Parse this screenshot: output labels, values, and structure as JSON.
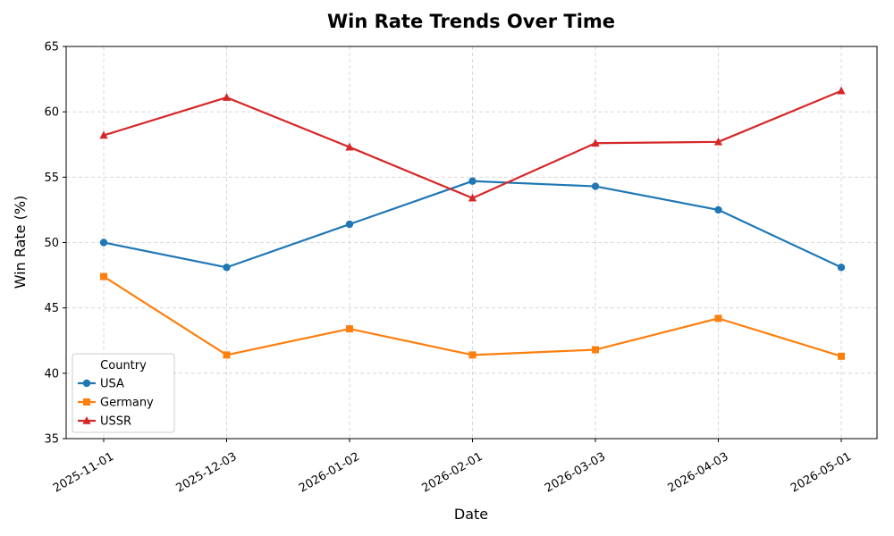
{
  "chart_data": {
    "type": "line",
    "title": "Win Rate Trends Over Time",
    "xlabel": "Date",
    "ylabel": "Win Rate (%)",
    "x": [
      "2025-11-01",
      "2025-12-03",
      "2026-01-02",
      "2026-02-01",
      "2026-03-03",
      "2026-04-03",
      "2026-05-01"
    ],
    "ylim": [
      35,
      65
    ],
    "yticks": [
      35,
      40,
      45,
      50,
      55,
      60,
      65
    ],
    "grid": true,
    "legend": {
      "title": "Country",
      "placement": "lower-left"
    },
    "series": [
      {
        "name": "USA",
        "color": "#1f77b4",
        "marker": "circle",
        "values": [
          50.0,
          48.1,
          51.4,
          54.7,
          54.3,
          52.5,
          48.1
        ]
      },
      {
        "name": "Germany",
        "color": "#ff7f0e",
        "marker": "square",
        "values": [
          47.4,
          41.4,
          43.4,
          41.4,
          41.8,
          44.2,
          41.3
        ]
      },
      {
        "name": "USSR",
        "color": "#d62728",
        "marker": "triangle",
        "values": [
          58.2,
          61.1,
          57.3,
          53.4,
          57.6,
          57.7,
          61.6
        ]
      }
    ]
  }
}
